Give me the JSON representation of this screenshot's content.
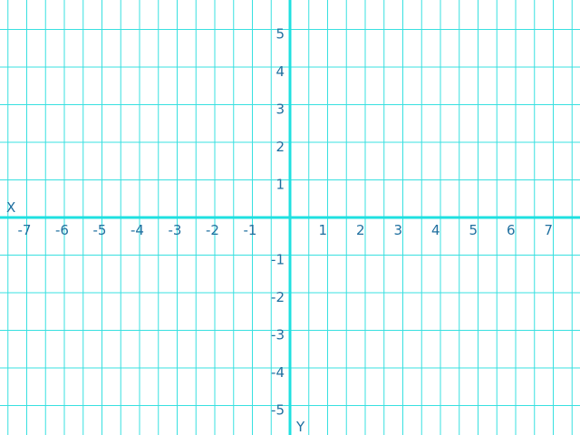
{
  "chart_data": {
    "type": "coordinate-grid",
    "x_axis_label": "X",
    "y_axis_label": "Y",
    "x_ticks": [
      "-7",
      "-6",
      "-5",
      "-4",
      "-3",
      "-2",
      "-1",
      "1",
      "2",
      "3",
      "4",
      "5",
      "6",
      "7"
    ],
    "y_ticks": [
      "5",
      "4",
      "3",
      "2",
      "1",
      "-1",
      "-2",
      "-3",
      "-4",
      "-5"
    ],
    "xlim": [
      -7.5,
      7.7
    ],
    "ylim": [
      -5.8,
      5.8
    ],
    "grid": true
  },
  "colors": {
    "grid": "#38e0e0",
    "axis": "#1fe0e0",
    "text": "#1f6f9f",
    "background": "#ffffff"
  }
}
